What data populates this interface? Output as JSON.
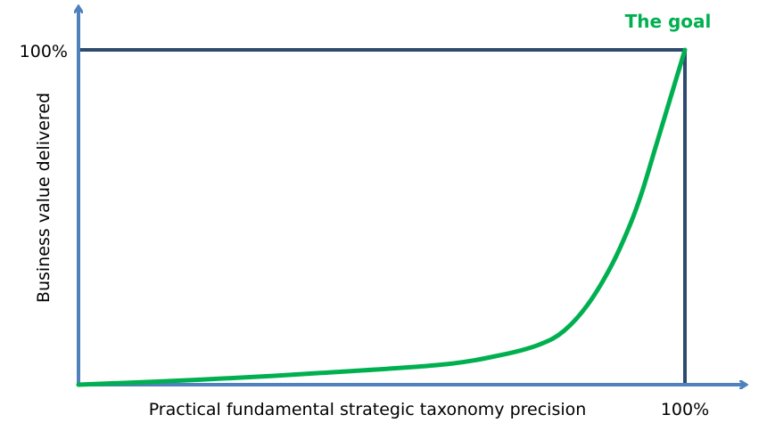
{
  "labels": {
    "x_axis": "Practical fundamental strategic taxonomy precision",
    "x_max": "100%",
    "y_axis": "Business value delivered",
    "y_max": "100%",
    "goal": "The goal"
  },
  "colors": {
    "axis": "#4F81BD",
    "frame": "#2E4A6E",
    "curve": "#00B050",
    "goal_text": "#00B050"
  },
  "chart_data": {
    "type": "line",
    "xlabel": "Practical fundamental strategic taxonomy precision",
    "ylabel": "Business value delivered",
    "xlim": [
      0,
      100
    ],
    "ylim": [
      0,
      100
    ],
    "series": [
      {
        "values_x": [
          0,
          20,
          40,
          60,
          70,
          76,
          80,
          84,
          88,
          91,
          93,
          95,
          96.5,
          98,
          99,
          100
        ],
        "values_y": [
          0,
          1.5,
          3.5,
          6,
          9,
          12,
          16,
          24,
          36,
          48,
          58,
          70,
          79,
          88,
          94,
          100
        ]
      }
    ]
  }
}
